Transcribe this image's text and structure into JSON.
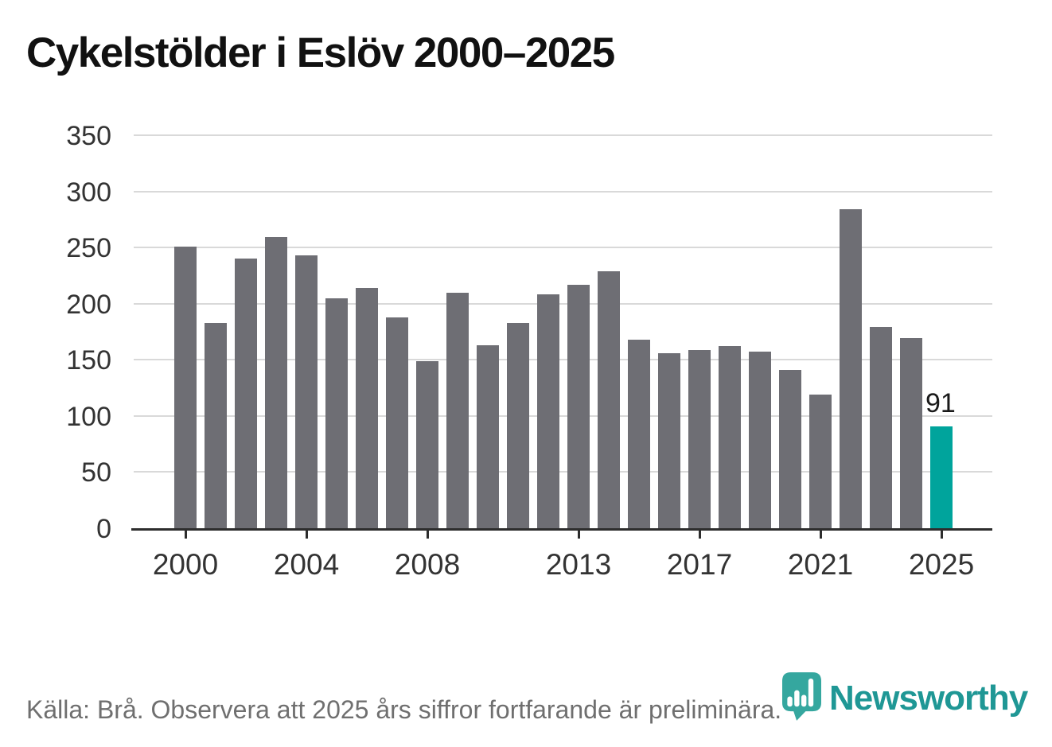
{
  "title": "Cykelstölder i Eslöv 2000–2025",
  "chart_data": {
    "type": "bar",
    "x": [
      2000,
      2001,
      2002,
      2003,
      2004,
      2005,
      2006,
      2007,
      2008,
      2009,
      2010,
      2011,
      2012,
      2013,
      2014,
      2015,
      2016,
      2017,
      2018,
      2019,
      2020,
      2021,
      2022,
      2023,
      2024,
      2025
    ],
    "values": [
      251,
      183,
      240,
      259,
      243,
      205,
      214,
      188,
      149,
      210,
      163,
      183,
      208,
      217,
      229,
      168,
      156,
      159,
      162,
      157,
      141,
      119,
      284,
      179,
      169,
      91
    ],
    "highlight_year": 2025,
    "value_label": {
      "year": 2025,
      "text": "91"
    },
    "yticks": [
      350,
      300,
      250,
      200,
      150,
      100,
      50,
      0
    ],
    "xtick_labels": [
      2000,
      2004,
      2008,
      2013,
      2017,
      2021,
      2025
    ],
    "ylim": [
      0,
      350
    ],
    "grid": "horizontal",
    "legend": "none",
    "title": "Cykelstölder i Eslöv 2000–2025"
  },
  "footer": {
    "source_note": "Källa: Brå. Observera att 2025 års siffror fortfarande är preliminära."
  },
  "branding": {
    "wordmark": "Newsworthy",
    "logo_icon": "bar-chart-pin-icon"
  },
  "colors": {
    "bar": "#6e6e74",
    "highlight": "#00a49c",
    "grid": "#d9d9d9",
    "axis": "#2d2d2d",
    "title_text": "#111111",
    "tick_text": "#333333",
    "footer_text": "#6f6f6f",
    "logo_mark": "#35a79f",
    "wordmark_text": "#1f9795"
  }
}
